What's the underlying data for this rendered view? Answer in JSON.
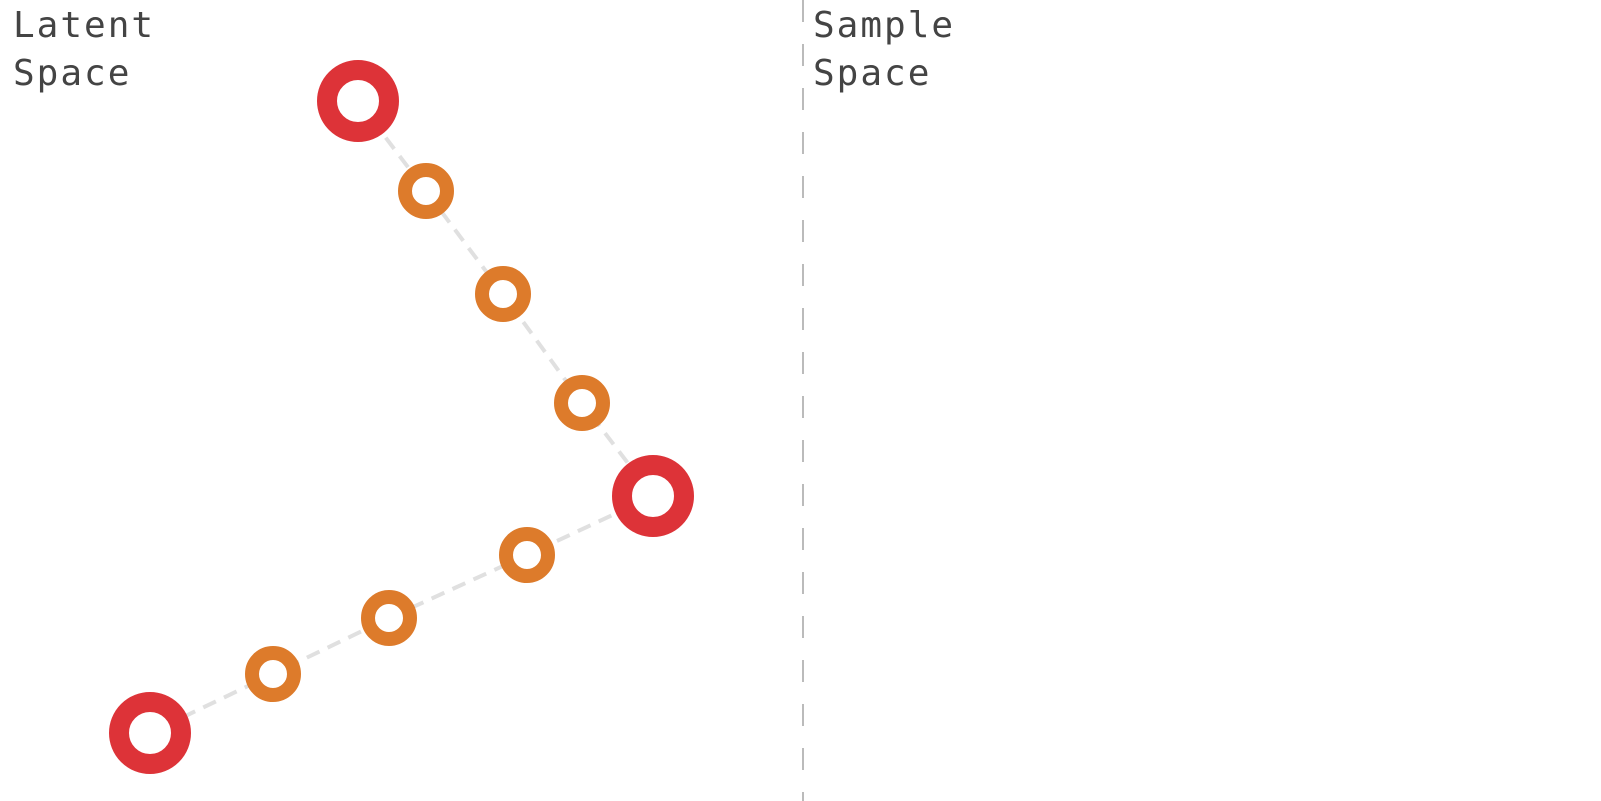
{
  "panels": {
    "latent": {
      "label": "Latent\nSpace"
    },
    "sample": {
      "label": "Sample\nSpace"
    }
  },
  "colors": {
    "anchor": "#dd3338",
    "interpolated": "#dd7b2b",
    "path": "#e0e0e0",
    "divider": "#bbbbbb",
    "text": "#444444"
  },
  "latent_points": [
    {
      "id": "anchor-a",
      "kind": "anchor"
    },
    {
      "id": "interp-1",
      "kind": "interpolated"
    },
    {
      "id": "interp-2",
      "kind": "interpolated"
    },
    {
      "id": "interp-3",
      "kind": "interpolated"
    },
    {
      "id": "anchor-b",
      "kind": "anchor"
    },
    {
      "id": "interp-4",
      "kind": "interpolated"
    },
    {
      "id": "interp-5",
      "kind": "interpolated"
    },
    {
      "id": "interp-6",
      "kind": "interpolated"
    },
    {
      "id": "anchor-c",
      "kind": "anchor"
    }
  ]
}
